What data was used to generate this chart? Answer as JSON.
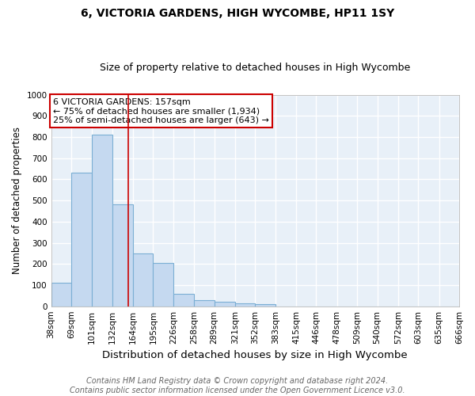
{
  "title_line1": "6, VICTORIA GARDENS, HIGH WYCOMBE, HP11 1SY",
  "title_line2": "Size of property relative to detached houses in High Wycombe",
  "xlabel": "Distribution of detached houses by size in High Wycombe",
  "ylabel": "Number of detached properties",
  "bin_edges": [
    38,
    69,
    101,
    132,
    164,
    195,
    226,
    258,
    289,
    321,
    352,
    383,
    415,
    446,
    478,
    509,
    540,
    572,
    603,
    635,
    666
  ],
  "bar_heights": [
    110,
    630,
    810,
    480,
    250,
    205,
    60,
    30,
    20,
    15,
    10,
    0,
    0,
    0,
    0,
    0,
    0,
    0,
    0,
    0
  ],
  "bar_color": "#c5d9f0",
  "bar_edge_color": "#7bafd4",
  "property_size": 157,
  "red_line_color": "#cc0000",
  "annotation_text": "6 VICTORIA GARDENS: 157sqm\n← 75% of detached houses are smaller (1,934)\n25% of semi-detached houses are larger (643) →",
  "annotation_box_color": "#ffffff",
  "annotation_border_color": "#cc0000",
  "ylim": [
    0,
    1000
  ],
  "yticks": [
    0,
    100,
    200,
    300,
    400,
    500,
    600,
    700,
    800,
    900,
    1000
  ],
  "footnote_line1": "Contains HM Land Registry data © Crown copyright and database right 2024.",
  "footnote_line2": "Contains public sector information licensed under the Open Government Licence v3.0.",
  "background_color": "#ffffff",
  "plot_bg_color": "#e8f0f8",
  "grid_color": "#ffffff",
  "title1_fontsize": 10,
  "title2_fontsize": 9,
  "xlabel_fontsize": 9.5,
  "ylabel_fontsize": 8.5,
  "tick_fontsize": 7.5,
  "footnote_fontsize": 7,
  "annotation_fontsize": 8
}
